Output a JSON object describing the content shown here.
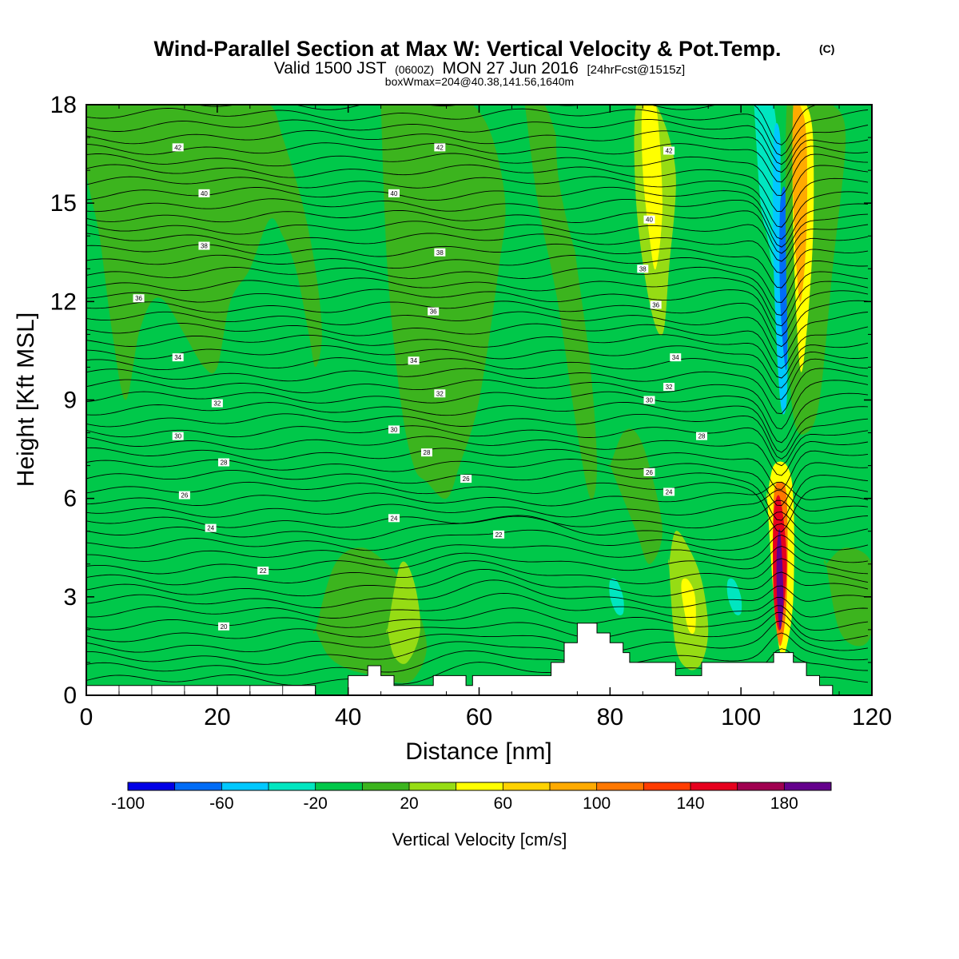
{
  "chart_data": {
    "type": "heatmap",
    "title": "Wind-Parallel Section at Max W: Vertical Velocity & Pot.Temp.",
    "copyright_mark": "(C)",
    "subtitle": {
      "prefix": "Valid 1500 JST",
      "utc": "(0600Z)",
      "date": "MON 27 Jun 2016",
      "forecast": "[24hrFcst@1515z]"
    },
    "box_info": "boxWmax=204@40.38,141.56,1640m",
    "xlabel": "Distance [nm]",
    "ylabel": "Height [Kft MSL]",
    "xlim": [
      0,
      120
    ],
    "ylim": [
      0,
      18
    ],
    "x_ticks": [
      "0",
      "20",
      "40",
      "60",
      "80",
      "100",
      "120"
    ],
    "y_ticks": [
      "0",
      "3",
      "6",
      "9",
      "12",
      "15",
      "18"
    ],
    "background_class": "-20 to 0 cm/s",
    "colorbar": {
      "label": "Vertical Velocity [cm/s]",
      "bounds": [
        -100,
        -80,
        -60,
        -40,
        -20,
        0,
        20,
        40,
        60,
        80,
        100,
        120,
        140,
        160,
        180,
        200
      ],
      "colors": [
        "#0000e6",
        "#006cf6",
        "#00c8ff",
        "#00e6c0",
        "#00c84a",
        "#3cb41e",
        "#96dc14",
        "#ffff00",
        "#ffd200",
        "#ffaa00",
        "#ff7800",
        "#ff3c00",
        "#e6001e",
        "#a00050",
        "#64008c"
      ],
      "tick_labels": [
        "-100",
        "-60",
        "-20",
        "20",
        "60",
        "100",
        "140",
        "180"
      ]
    },
    "terrain": [
      [
        40,
        0
      ],
      [
        40,
        0.6
      ],
      [
        43,
        0.6
      ],
      [
        43,
        0.9
      ],
      [
        45,
        0.9
      ],
      [
        45,
        0.6
      ],
      [
        47,
        0.6
      ],
      [
        47,
        0.3
      ],
      [
        53,
        0.3
      ],
      [
        53,
        0.6
      ],
      [
        58,
        0.6
      ],
      [
        58,
        0.3
      ],
      [
        59,
        0.3
      ],
      [
        59,
        0.6
      ],
      [
        71,
        0.6
      ],
      [
        71,
        1.0
      ],
      [
        73,
        1.0
      ],
      [
        73,
        1.6
      ],
      [
        75,
        1.6
      ],
      [
        75,
        2.2
      ],
      [
        78,
        2.2
      ],
      [
        78,
        1.9
      ],
      [
        80,
        1.9
      ],
      [
        80,
        1.6
      ],
      [
        82,
        1.6
      ],
      [
        82,
        1.3
      ],
      [
        83,
        1.3
      ],
      [
        83,
        1.0
      ],
      [
        90,
        1.0
      ],
      [
        90,
        0.6
      ],
      [
        94,
        0.6
      ],
      [
        94,
        1.0
      ],
      [
        105,
        1.0
      ],
      [
        105,
        1.3
      ],
      [
        108,
        1.3
      ],
      [
        108,
        1.0
      ],
      [
        110,
        1.0
      ],
      [
        110,
        0.6
      ],
      [
        112,
        0.6
      ],
      [
        112,
        0.3
      ],
      [
        114,
        0.3
      ],
      [
        114,
        0
      ],
      [
        40,
        0
      ]
    ],
    "terrain_low": [
      [
        0,
        0
      ],
      [
        0,
        0.3
      ],
      [
        35,
        0.3
      ],
      [
        35,
        0
      ],
      [
        0,
        0
      ]
    ],
    "w_features": [
      {
        "x": [
          0,
          5,
          8,
          14,
          18,
          20,
          23,
          28,
          30,
          33,
          35,
          36,
          35,
          34,
          32,
          30,
          28,
          25,
          22,
          20,
          18,
          15,
          12,
          10,
          8,
          6,
          4,
          2,
          0
        ],
        "y": [
          18,
          18,
          18,
          18,
          18,
          18,
          18,
          18,
          17,
          15,
          13,
          11,
          10,
          11,
          13,
          14,
          14.5,
          13,
          12,
          10,
          10,
          11,
          12,
          12,
          11,
          9,
          11,
          14,
          16
        ],
        "v": 10
      },
      {
        "x": [
          45,
          48,
          52,
          56,
          59,
          62,
          64,
          63,
          60,
          57,
          55,
          52,
          50,
          48,
          46,
          45
        ],
        "y": [
          18,
          18,
          18,
          18,
          18,
          17,
          15,
          13,
          9,
          7,
          6,
          6.5,
          7,
          9,
          13,
          18
        ],
        "v": 10
      },
      {
        "x": [
          35,
          38,
          42,
          46,
          48,
          50,
          52,
          50,
          47,
          44,
          40,
          37,
          35
        ],
        "y": [
          2,
          4,
          4.5,
          4,
          3.5,
          3,
          1.5,
          0.5,
          0.4,
          0.6,
          0.8,
          1.2,
          2
        ],
        "v": 10
      },
      {
        "x": [
          46,
          48,
          50,
          51,
          49,
          47,
          46
        ],
        "y": [
          2,
          4,
          3.5,
          2,
          1,
          1.2,
          2
        ],
        "v": 30
      },
      {
        "x": [
          67,
          70,
          73,
          75,
          77,
          78,
          77,
          75,
          72,
          69,
          67
        ],
        "y": [
          18,
          18,
          16,
          13,
          10,
          7,
          6,
          8,
          12,
          15,
          18
        ],
        "v": 10
      },
      {
        "x": [
          72,
          74,
          76,
          76,
          74,
          72
        ],
        "y": [
          18,
          18,
          15,
          13,
          14,
          16
        ],
        "v": -10
      },
      {
        "x": [
          84,
          87,
          90,
          89,
          88,
          86,
          84
        ],
        "y": [
          18,
          18,
          16,
          13,
          11,
          12,
          15
        ],
        "v": 30
      },
      {
        "x": [
          85,
          87,
          88,
          87,
          86,
          85
        ],
        "y": [
          18,
          18,
          15,
          13,
          14,
          16
        ],
        "v": 50
      },
      {
        "x": [
          80,
          82,
          84,
          86,
          88,
          86,
          84,
          82,
          80
        ],
        "y": [
          7,
          8,
          8,
          7,
          5,
          4,
          5,
          6,
          7
        ],
        "v": 10
      },
      {
        "x": [
          64,
          67,
          70,
          73,
          75,
          74,
          72,
          69,
          66,
          64
        ],
        "y": [
          4,
          5,
          5,
          4,
          2.5,
          1.3,
          1.0,
          1.5,
          2.5,
          4
        ],
        "v": -10
      },
      {
        "x": [
          77,
          80,
          82,
          84,
          85,
          84,
          82,
          79,
          77
        ],
        "y": [
          4,
          5,
          4.5,
          3.5,
          2,
          1.2,
          1,
          1.5,
          4
        ],
        "v": -10
      },
      {
        "x": [
          80,
          81,
          82,
          82,
          81,
          80
        ],
        "y": [
          3.5,
          3.5,
          3,
          2.5,
          2.5,
          3
        ],
        "v": -30
      },
      {
        "x": [
          89,
          90,
          92,
          94,
          95,
          94,
          92,
          90,
          89
        ],
        "y": [
          4,
          5,
          4.5,
          3.5,
          2,
          1,
          0.8,
          1.5,
          4
        ],
        "v": 30
      },
      {
        "x": [
          91,
          92,
          93,
          93,
          92,
          91
        ],
        "y": [
          3.5,
          3.5,
          3,
          2,
          2,
          3
        ],
        "v": 50
      },
      {
        "x": [
          96,
          98,
          100,
          101,
          100,
          98,
          96
        ],
        "y": [
          4,
          5,
          4.5,
          3,
          1.5,
          1.2,
          4
        ],
        "v": -10
      },
      {
        "x": [
          98,
          99,
          100,
          100,
          99,
          98
        ],
        "y": [
          3.5,
          3.5,
          3,
          2.5,
          2.5,
          3
        ],
        "v": -30
      },
      {
        "x": [
          100,
          102,
          104,
          105,
          106,
          107,
          108,
          108,
          107,
          106,
          105,
          104,
          103,
          102,
          101,
          100
        ],
        "y": [
          18,
          18,
          18,
          18,
          18,
          18,
          18,
          12,
          8,
          8.5,
          10,
          12,
          14,
          15,
          16,
          18
        ],
        "v": -10
      },
      {
        "x": [
          102,
          104,
          105,
          106,
          106,
          105,
          104,
          103,
          102
        ],
        "y": [
          18,
          18,
          18,
          16,
          14,
          13,
          14,
          15,
          18
        ],
        "v": -30
      },
      {
        "x": [
          105,
          106,
          106,
          107,
          107,
          106,
          105
        ],
        "y": [
          17,
          17,
          14,
          12,
          9,
          9,
          13
        ],
        "v": -50
      },
      {
        "x": [
          106,
          107,
          107,
          106
        ],
        "y": [
          15,
          15,
          10,
          12
        ],
        "v": -70
      },
      {
        "x": [
          107,
          109,
          112,
          114,
          116,
          114,
          112,
          110,
          108,
          107
        ],
        "y": [
          18,
          18,
          18,
          18,
          17,
          13,
          9,
          8,
          8.5,
          12
        ],
        "v": 10
      },
      {
        "x": [
          108,
          109,
          110,
          111,
          111,
          110,
          109,
          108
        ],
        "y": [
          18,
          18,
          18,
          17,
          14,
          11,
          10,
          14
        ],
        "v": 50
      },
      {
        "x": [
          108,
          109,
          110,
          110,
          109,
          108
        ],
        "y": [
          18,
          18,
          17,
          14,
          12,
          15
        ],
        "v": 90
      },
      {
        "x": [
          104,
          105,
          107,
          108,
          108,
          107,
          106,
          105,
          104
        ],
        "y": [
          6,
          7,
          7,
          6,
          3,
          1.5,
          1.3,
          3,
          6
        ],
        "v": 50
      },
      {
        "x": [
          105,
          106,
          107,
          107,
          106,
          105
        ],
        "y": [
          6,
          6.5,
          6,
          3,
          1.5,
          3
        ],
        "v": 110
      },
      {
        "x": [
          105,
          106,
          107,
          106,
          105
        ],
        "y": [
          5.5,
          6,
          4,
          2,
          3
        ],
        "v": 150
      },
      {
        "x": [
          105.5,
          106,
          106.5,
          106,
          105.5
        ],
        "y": [
          4.5,
          5,
          3,
          2,
          3
        ],
        "v": 190
      },
      {
        "x": [
          113,
          116,
          120,
          120,
          118,
          115,
          113
        ],
        "y": [
          4,
          4.5,
          4,
          2,
          1.5,
          2,
          4
        ],
        "v": 10
      }
    ],
    "theta_labels": [
      {
        "x": 14,
        "y": 16.7,
        "t": "42"
      },
      {
        "x": 18,
        "y": 15.3,
        "t": "40"
      },
      {
        "x": 18,
        "y": 13.7,
        "t": "38"
      },
      {
        "x": 8,
        "y": 12.1,
        "t": "36"
      },
      {
        "x": 14,
        "y": 10.3,
        "t": "34"
      },
      {
        "x": 20,
        "y": 8.9,
        "t": "32"
      },
      {
        "x": 14,
        "y": 7.9,
        "t": "30"
      },
      {
        "x": 21,
        "y": 7.1,
        "t": "28"
      },
      {
        "x": 15,
        "y": 6.1,
        "t": "26"
      },
      {
        "x": 19,
        "y": 5.1,
        "t": "24"
      },
      {
        "x": 27,
        "y": 3.8,
        "t": "22"
      },
      {
        "x": 21,
        "y": 2.1,
        "t": "20"
      },
      {
        "x": 54,
        "y": 16.7,
        "t": "42"
      },
      {
        "x": 47,
        "y": 15.3,
        "t": "40"
      },
      {
        "x": 54,
        "y": 13.5,
        "t": "38"
      },
      {
        "x": 53,
        "y": 11.7,
        "t": "36"
      },
      {
        "x": 50,
        "y": 10.2,
        "t": "34"
      },
      {
        "x": 54,
        "y": 9.2,
        "t": "32"
      },
      {
        "x": 47,
        "y": 8.1,
        "t": "30"
      },
      {
        "x": 52,
        "y": 7.4,
        "t": "28"
      },
      {
        "x": 58,
        "y": 6.6,
        "t": "26"
      },
      {
        "x": 47,
        "y": 5.4,
        "t": "24"
      },
      {
        "x": 63,
        "y": 4.9,
        "t": "22"
      },
      {
        "x": 89,
        "y": 16.6,
        "t": "42"
      },
      {
        "x": 86,
        "y": 14.5,
        "t": "40"
      },
      {
        "x": 85,
        "y": 13.0,
        "t": "38"
      },
      {
        "x": 87,
        "y": 11.9,
        "t": "36"
      },
      {
        "x": 90,
        "y": 10.3,
        "t": "34"
      },
      {
        "x": 89,
        "y": 9.4,
        "t": "32"
      },
      {
        "x": 86,
        "y": 9.0,
        "t": "30"
      },
      {
        "x": 94,
        "y": 7.9,
        "t": "28"
      },
      {
        "x": 86,
        "y": 6.8,
        "t": "26"
      },
      {
        "x": 89,
        "y": 6.2,
        "t": "24"
      }
    ]
  }
}
